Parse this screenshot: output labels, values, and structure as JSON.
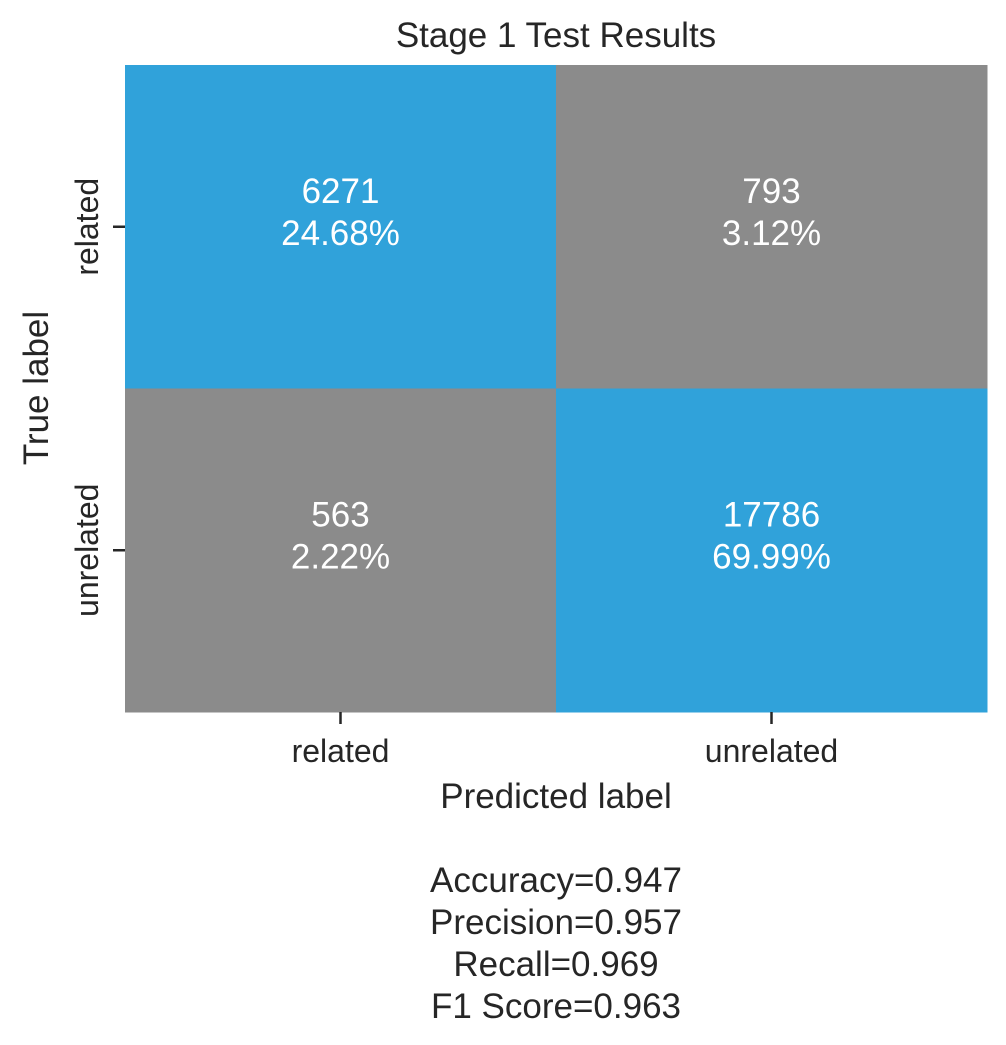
{
  "chart_data": {
    "type": "heatmap",
    "title": "Stage 1 Test Results",
    "xlabel": "Predicted label",
    "ylabel": "True label",
    "x_categories": [
      "related",
      "unrelated"
    ],
    "y_categories": [
      "related",
      "unrelated"
    ],
    "values": [
      [
        6271,
        793
      ],
      [
        563,
        17786
      ]
    ],
    "percent_labels": [
      [
        "24.68%",
        "3.12%"
      ],
      [
        "2.22%",
        "69.99%"
      ]
    ],
    "cell_colors": [
      [
        "#30a2da",
        "#8b8b8b"
      ],
      [
        "#8b8b8b",
        "#30a2da"
      ]
    ],
    "colorbar": false,
    "grid": false,
    "metrics": [
      "Accuracy=0.947",
      "Precision=0.957",
      "Recall=0.969",
      "F1 Score=0.963"
    ]
  },
  "colors": {
    "text": "#262626",
    "cell_text": "#ffffff",
    "tick": "#262626"
  }
}
